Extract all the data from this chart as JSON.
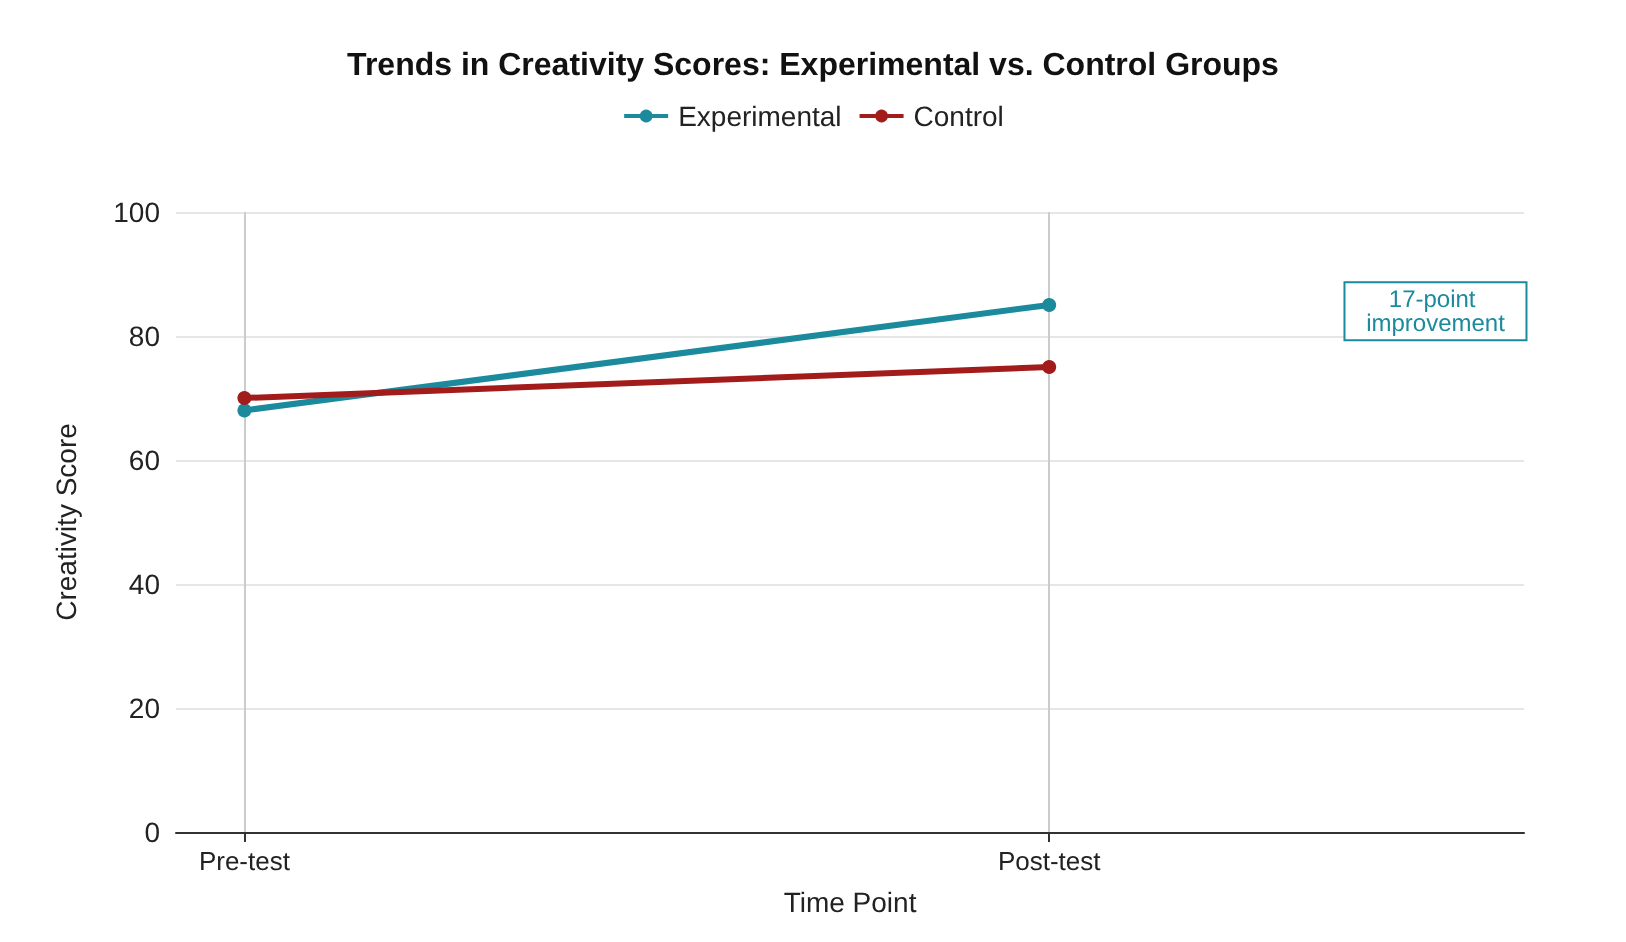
{
  "chart_data": {
    "type": "line",
    "title": "Trends in Creativity Scores: Experimental vs. Control Groups",
    "xlabel": "Time Point",
    "ylabel": "Creativity Score",
    "categories": [
      "Pre-test",
      "Post-test"
    ],
    "series": [
      {
        "name": "Experimental",
        "color": "#1b8a9c",
        "values": [
          68,
          85
        ]
      },
      {
        "name": "Control",
        "color": "#a31c1c",
        "values": [
          70,
          75
        ]
      }
    ],
    "ylim": [
      0,
      100
    ],
    "yticks": [
      0,
      20,
      40,
      60,
      80,
      100
    ],
    "grid": true,
    "legend": "top",
    "marker": "circle",
    "line_style": "solid",
    "annotations": [
      "17-point improvement"
    ]
  }
}
